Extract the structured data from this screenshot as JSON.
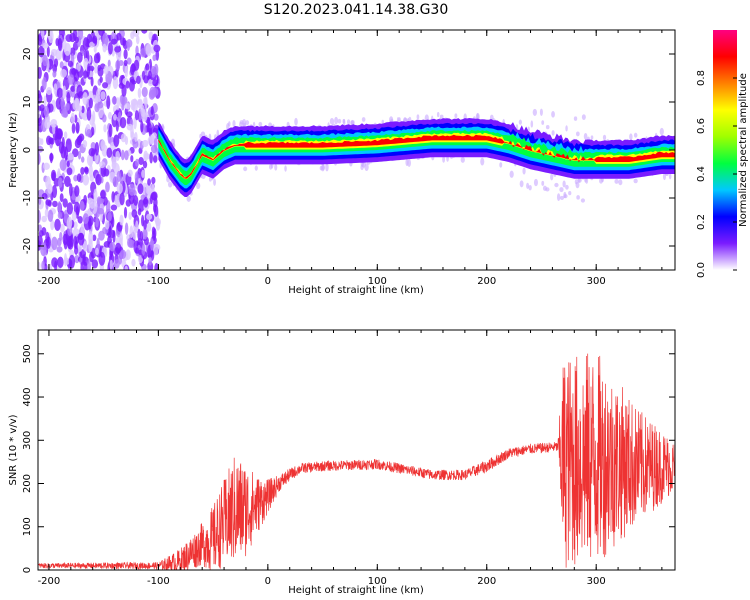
{
  "title": "S120.2023.041.14.38.G30",
  "chart_data": [
    {
      "type": "heatmap",
      "xlabel": "Height of straight line (km)",
      "ylabel": "Frequency (Hz)",
      "xlim": [
        -210,
        372
      ],
      "ylim": [
        -25,
        25
      ],
      "xticks": [
        -200,
        -100,
        0,
        100,
        200,
        300
      ],
      "yticks": [
        -20,
        -10,
        0,
        10,
        20
      ],
      "colorbar": {
        "label": "Normalized spectral amplitude",
        "range": [
          0,
          1
        ],
        "ticks": [
          "0.0",
          "0.2",
          "0.4",
          "0.6",
          "0.8"
        ],
        "tick_values": [
          0.0,
          0.2,
          0.4,
          0.6,
          0.8
        ],
        "colors": [
          "#ffffff",
          "#7a1cff",
          "#0000ff",
          "#00c8ff",
          "#00ff40",
          "#a0ff00",
          "#ffff00",
          "#ff8000",
          "#ff0000",
          "#ff0080"
        ]
      },
      "ridge_frequency": {
        "x": [
          -100,
          -90,
          -80,
          -75,
          -70,
          -60,
          -50,
          -40,
          -30,
          -20,
          0,
          50,
          100,
          150,
          200,
          220,
          240,
          260,
          280,
          300,
          330,
          360,
          372
        ],
        "y": [
          2,
          -2,
          -5,
          -6,
          -5,
          -1,
          -2,
          0,
          1,
          1,
          1,
          1,
          1.5,
          2.5,
          2.5,
          1.5,
          0,
          -1,
          -2,
          -2,
          -2,
          -1,
          -1
        ]
      },
      "noise_region_x": [
        -210,
        -100
      ]
    },
    {
      "type": "line",
      "xlabel": "Height of straight line (km)",
      "ylabel": "SNR (10 * v/v)",
      "xlim": [
        -210,
        372
      ],
      "ylim": [
        0,
        555
      ],
      "xticks": [
        -200,
        -100,
        0,
        100,
        200,
        300
      ],
      "yticks": [
        0,
        100,
        200,
        300,
        400,
        500
      ],
      "color": "#ee3333",
      "envelope": {
        "x": [
          -210,
          -100,
          -80,
          -70,
          -60,
          -50,
          -40,
          -30,
          -20,
          -10,
          0,
          10,
          20,
          30,
          50,
          100,
          150,
          180,
          200,
          220,
          240,
          265,
          270,
          300,
          340,
          372
        ],
        "mean": [
          10,
          10,
          20,
          40,
          60,
          70,
          110,
          140,
          140,
          150,
          170,
          200,
          220,
          235,
          240,
          245,
          220,
          220,
          240,
          270,
          280,
          285,
          250,
          260,
          240,
          240
        ],
        "spread": [
          6,
          8,
          30,
          40,
          50,
          80,
          100,
          130,
          110,
          70,
          40,
          20,
          15,
          12,
          12,
          12,
          12,
          12,
          15,
          12,
          12,
          12,
          250,
          250,
          130,
          60
        ]
      }
    }
  ]
}
